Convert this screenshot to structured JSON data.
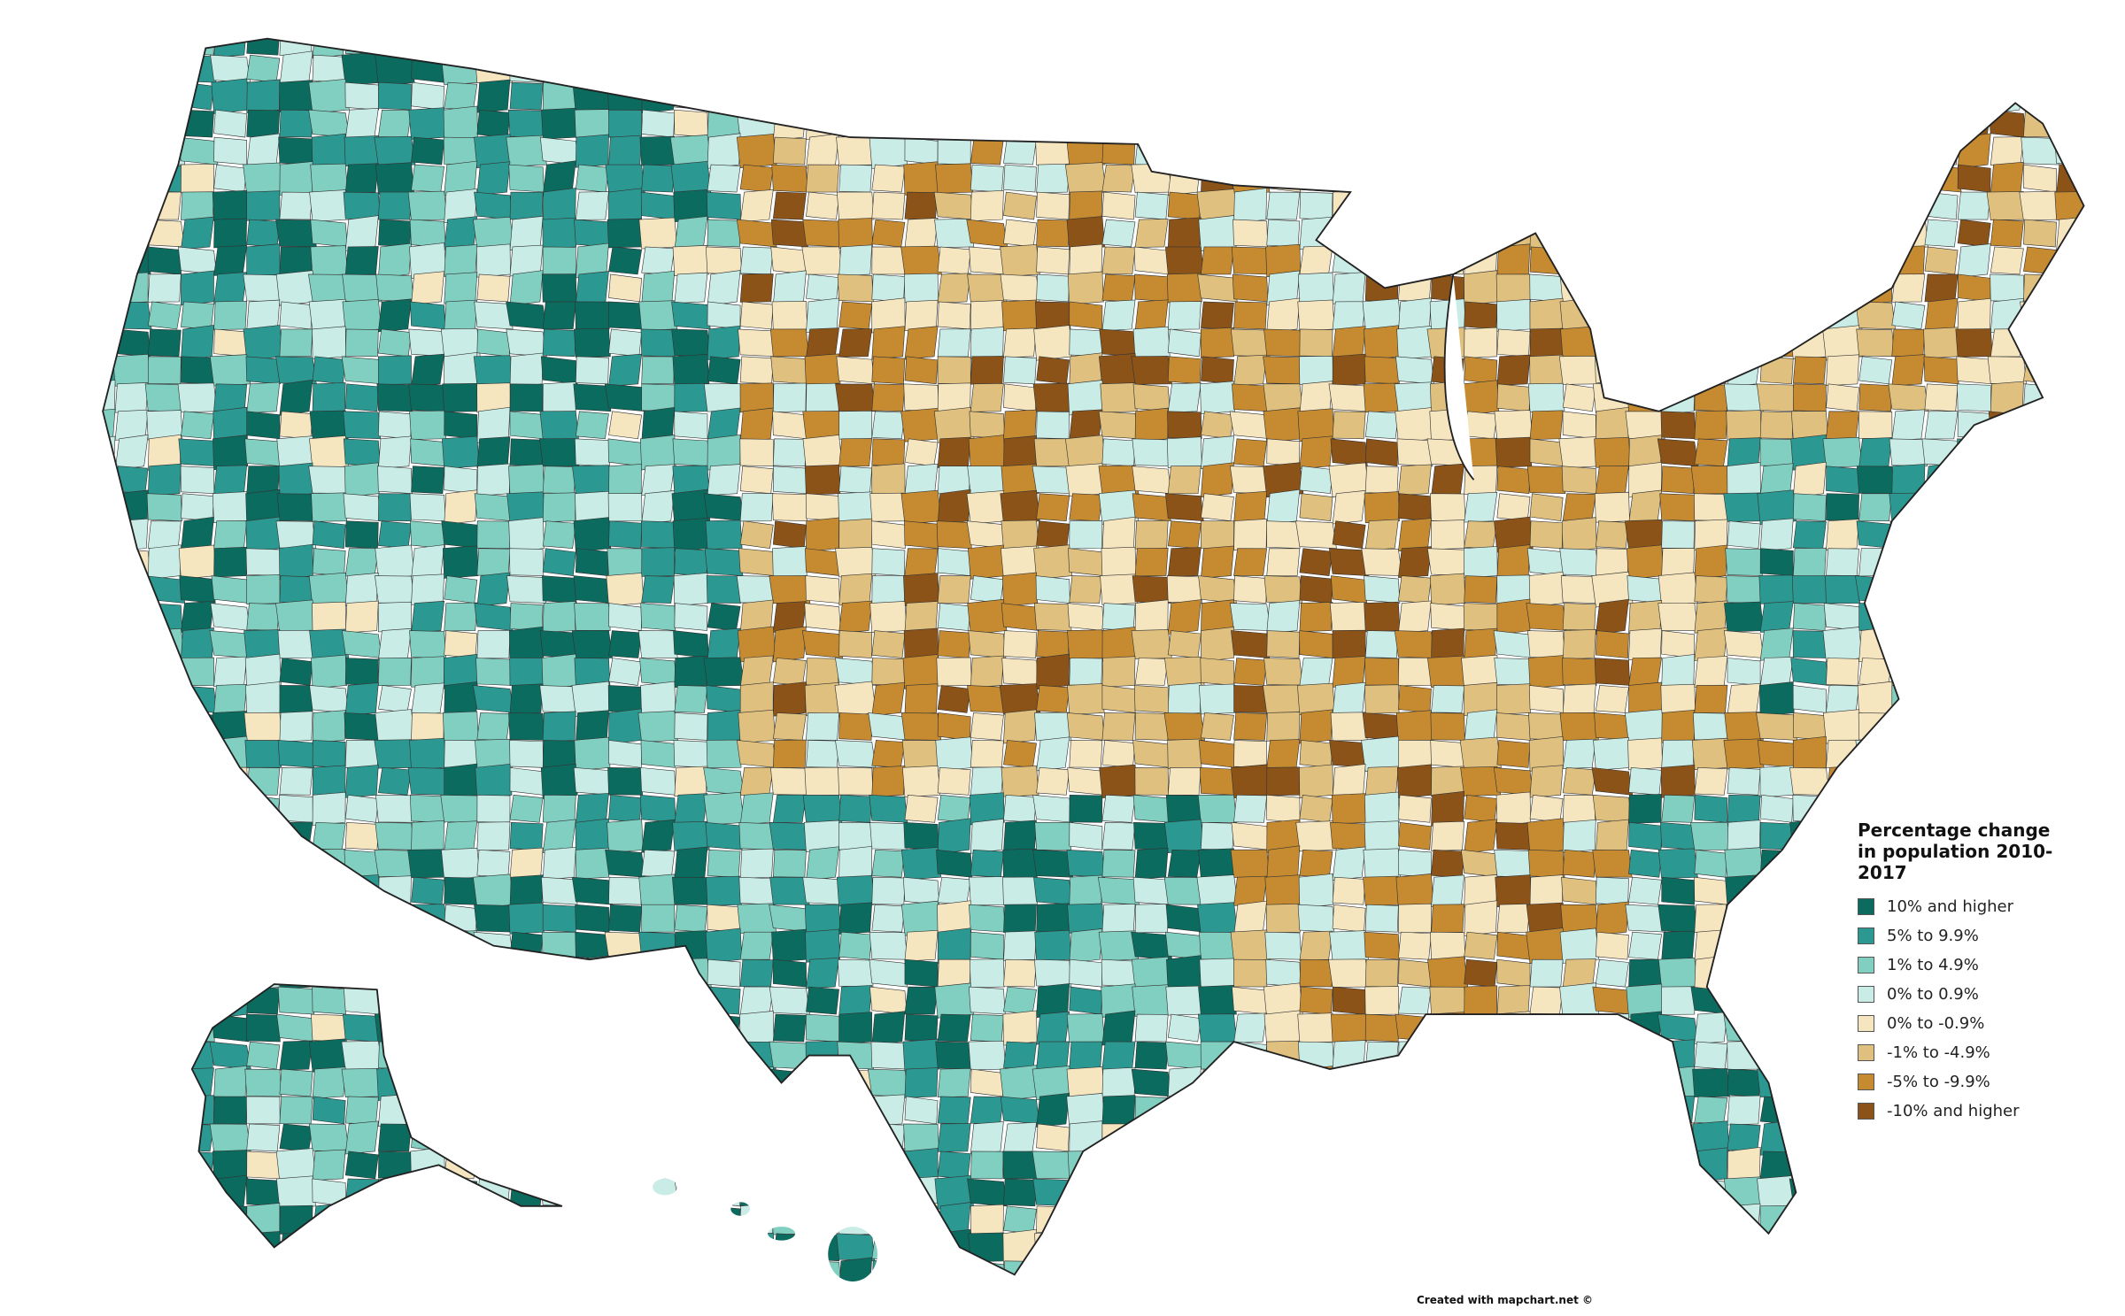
{
  "legend": {
    "title": "Percentage change in population 2010-2017",
    "items": [
      {
        "label": "10% and higher",
        "color": "#0b6b5f"
      },
      {
        "label": "5% to 9.9%",
        "color": "#2b9892"
      },
      {
        "label": "1% to 4.9%",
        "color": "#80cfc0"
      },
      {
        "label": "0% to 0.9%",
        "color": "#c9ede6"
      },
      {
        "label": "0% to -0.9%",
        "color": "#f6e6c0"
      },
      {
        "label": "-1% to -4.9%",
        "color": "#dfc07e"
      },
      {
        "label": "-5% to -9.9%",
        "color": "#c68b30"
      },
      {
        "label": "-10% and higher",
        "color": "#8c5319"
      }
    ]
  },
  "credit": "Created with mapchart.net ©"
}
